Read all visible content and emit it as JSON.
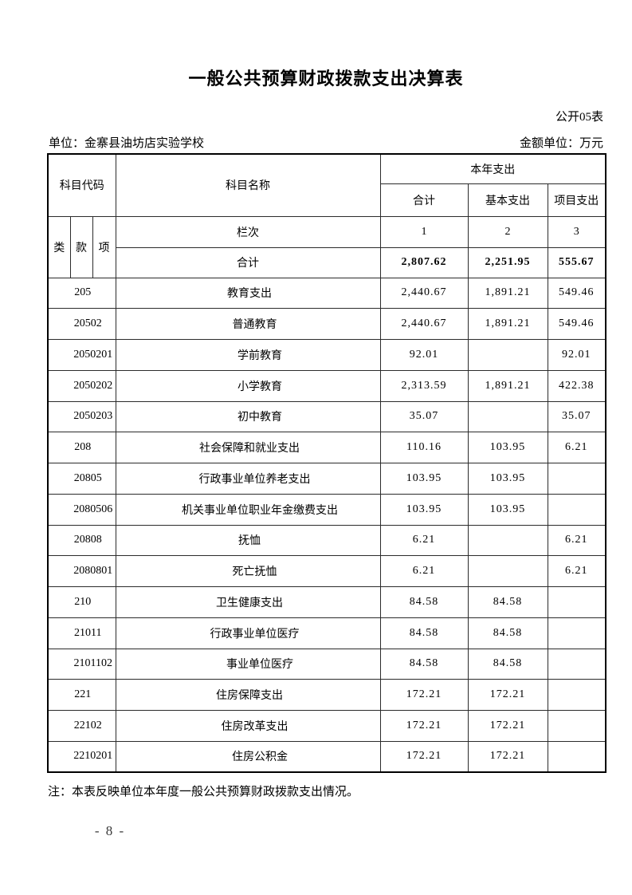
{
  "page": {
    "title": "一般公共预算财政拨款支出决算表",
    "doc_number": "公开05表",
    "unit": {
      "label": "单位：",
      "value": "金寨县油坊店实验学校"
    },
    "amount_unit": {
      "label": "金额单位：",
      "value": "万元"
    },
    "note": "注：本表反映单位本年度一般公共预算财政拨款支出情况。",
    "page_number": "- 8 -"
  },
  "table": {
    "header": {
      "subject_code": "科目代码",
      "subject_name": "科目名称",
      "current_year_expenditure": "本年支出",
      "total": "合计",
      "basic_expenditure": "基本支出",
      "project_expenditure": "项目支出",
      "category": "类",
      "item": "款",
      "sub_item": "项",
      "column_index_label": "栏次",
      "column_indexes": [
        "1",
        "2",
        "3"
      ]
    },
    "grand_total": {
      "label": "合计",
      "total": "2,807.62",
      "basic": "2,251.95",
      "project": "555.67"
    },
    "rows": [
      {
        "code": "205",
        "code_indent": 0,
        "name": "教育支出",
        "name_indent": 0,
        "total": "2,440.67",
        "basic": "1,891.21",
        "project": "549.46"
      },
      {
        "code": "20502",
        "code_indent": 1,
        "name": "普通教育",
        "name_indent": 1,
        "total": "2,440.67",
        "basic": "1,891.21",
        "project": "549.46"
      },
      {
        "code": "2050201",
        "code_indent": 2,
        "name": "学前教育",
        "name_indent": 2,
        "total": "92.01",
        "basic": "",
        "project": "92.01"
      },
      {
        "code": "2050202",
        "code_indent": 2,
        "name": "小学教育",
        "name_indent": 2,
        "total": "2,313.59",
        "basic": "1,891.21",
        "project": "422.38"
      },
      {
        "code": "2050203",
        "code_indent": 2,
        "name": "初中教育",
        "name_indent": 2,
        "total": "35.07",
        "basic": "",
        "project": "35.07"
      },
      {
        "code": "208",
        "code_indent": 0,
        "name": "社会保障和就业支出",
        "name_indent": 0,
        "total": "110.16",
        "basic": "103.95",
        "project": "6.21"
      },
      {
        "code": "20805",
        "code_indent": 1,
        "name": "行政事业单位养老支出",
        "name_indent": 1,
        "total": "103.95",
        "basic": "103.95",
        "project": ""
      },
      {
        "code": "2080506",
        "code_indent": 2,
        "name": "机关事业单位职业年金缴费支出",
        "name_indent": 2,
        "total": "103.95",
        "basic": "103.95",
        "project": ""
      },
      {
        "code": "20808",
        "code_indent": 1,
        "name": "抚恤",
        "name_indent": 0,
        "total": "6.21",
        "basic": "",
        "project": "6.21"
      },
      {
        "code": "2080801",
        "code_indent": 2,
        "name": "死亡抚恤",
        "name_indent": 1,
        "total": "6.21",
        "basic": "",
        "project": "6.21"
      },
      {
        "code": "210",
        "code_indent": 0,
        "name": "卫生健康支出",
        "name_indent": 0,
        "total": "84.58",
        "basic": "84.58",
        "project": ""
      },
      {
        "code": "21011",
        "code_indent": 1,
        "name": "行政事业单位医疗",
        "name_indent": 1,
        "total": "84.58",
        "basic": "84.58",
        "project": ""
      },
      {
        "code": "2101102",
        "code_indent": 2,
        "name": "事业单位医疗",
        "name_indent": 2,
        "total": "84.58",
        "basic": "84.58",
        "project": ""
      },
      {
        "code": "221",
        "code_indent": 0,
        "name": "住房保障支出",
        "name_indent": 0,
        "total": "172.21",
        "basic": "172.21",
        "project": ""
      },
      {
        "code": "22102",
        "code_indent": 1,
        "name": "住房改革支出",
        "name_indent": 1,
        "total": "172.21",
        "basic": "172.21",
        "project": ""
      },
      {
        "code": "2210201",
        "code_indent": 2,
        "name": "住房公积金",
        "name_indent": 2,
        "total": "172.21",
        "basic": "172.21",
        "project": ""
      }
    ]
  }
}
